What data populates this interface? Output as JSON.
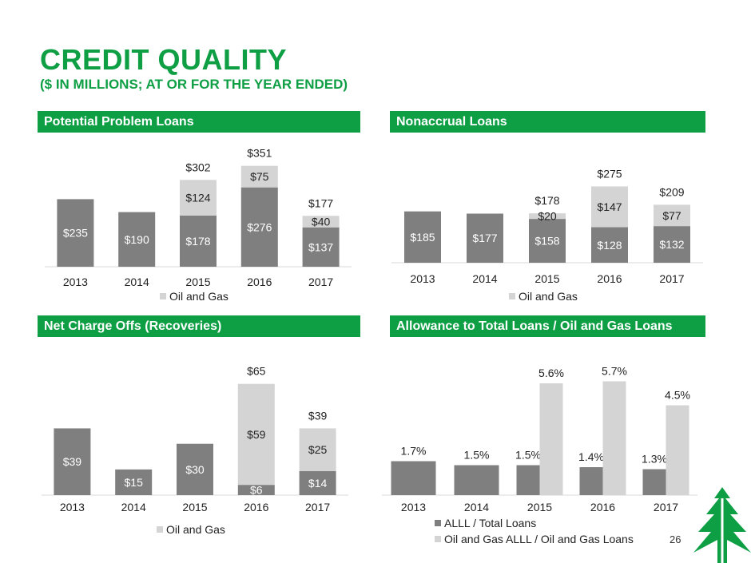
{
  "title": "CREDIT QUALITY",
  "subtitle": "($ IN MILLIONS; AT OR FOR THE YEAR ENDED)",
  "page_number": "26",
  "colors": {
    "brand_green": "#0e9f45",
    "dark_series": "#7f7f80",
    "light_series": "#d4d4d4"
  },
  "panels": [
    {
      "header": "Potential Problem Loans"
    },
    {
      "header": "Nonaccrual Loans"
    },
    {
      "header": "Net Charge Offs (Recoveries)"
    },
    {
      "header": "Allowance to Total Loans / Oil and Gas Loans"
    }
  ],
  "chart_data": [
    {
      "type": "bar",
      "stacked": true,
      "title": "Potential Problem Loans",
      "categories": [
        "2013",
        "2014",
        "2015",
        "2016",
        "2017"
      ],
      "series": [
        {
          "values": [
            235,
            190,
            178,
            276,
            137
          ],
          "labels": [
            "$235",
            "$190",
            "$178",
            "$276",
            "$137"
          ]
        },
        {
          "name": "Oil and Gas",
          "values": [
            0,
            0,
            124,
            75,
            40
          ],
          "labels": [
            "",
            "",
            "$124",
            "$75",
            "$40"
          ]
        }
      ],
      "totals": [
        null,
        null,
        302,
        351,
        177
      ],
      "total_labels": [
        "",
        "",
        "$302",
        "$351",
        "$177"
      ],
      "ylim": [
        0,
        400
      ],
      "legend": "bottom"
    },
    {
      "type": "bar",
      "stacked": true,
      "title": "Nonaccrual Loans",
      "categories": [
        "2013",
        "2014",
        "2015",
        "2016",
        "2017"
      ],
      "series": [
        {
          "values": [
            185,
            177,
            158,
            128,
            132
          ],
          "labels": [
            "$185",
            "$177",
            "$158",
            "$128",
            "$132"
          ]
        },
        {
          "name": "Oil and Gas",
          "values": [
            0,
            0,
            20,
            147,
            77
          ],
          "labels": [
            "",
            "",
            "$20",
            "$147",
            "$77"
          ]
        }
      ],
      "totals": [
        null,
        null,
        178,
        275,
        209
      ],
      "total_labels": [
        "",
        "",
        "$178",
        "$275",
        "$209"
      ],
      "ylim": [
        0,
        400
      ],
      "legend": "bottom"
    },
    {
      "type": "bar",
      "stacked": true,
      "title": "Net Charge Offs (Recoveries)",
      "categories": [
        "2013",
        "2014",
        "2015",
        "2016",
        "2017"
      ],
      "series": [
        {
          "values": [
            39,
            15,
            30,
            6,
            14
          ],
          "labels": [
            "$39",
            "$15",
            "$30",
            "$6",
            "$14"
          ]
        },
        {
          "name": "Oil and Gas",
          "values": [
            0,
            0,
            0,
            59,
            25
          ],
          "labels": [
            "",
            "",
            "",
            "$59",
            "$25"
          ]
        }
      ],
      "totals": [
        null,
        null,
        null,
        65,
        39
      ],
      "total_labels": [
        "",
        "",
        "",
        "$65",
        "$39"
      ],
      "ylim": [
        0,
        70
      ],
      "legend": "bottom"
    },
    {
      "type": "bar",
      "stacked": false,
      "title": "Allowance to Total Loans / Oil and Gas Loans",
      "categories": [
        "2013",
        "2014",
        "2015",
        "2016",
        "2017"
      ],
      "series": [
        {
          "name": "ALLL / Total Loans",
          "values": [
            1.7,
            1.5,
            1.5,
            1.4,
            1.3
          ],
          "labels": [
            "1.7%",
            "1.5%",
            "1.5%",
            "1.4%",
            "1.3%"
          ]
        },
        {
          "name": "Oil and Gas ALLL / Oil and Gas Loans",
          "values": [
            null,
            null,
            5.6,
            5.7,
            4.5
          ],
          "labels": [
            "",
            "",
            "5.6%",
            "5.7%",
            "4.5%"
          ]
        }
      ],
      "ylim": [
        0,
        6
      ],
      "legend": "bottom"
    }
  ]
}
